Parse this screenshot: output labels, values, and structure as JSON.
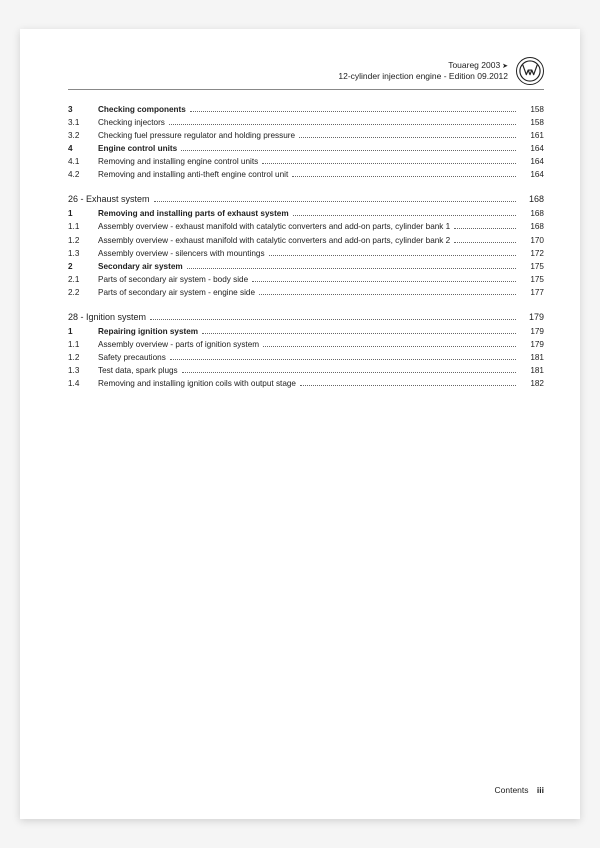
{
  "header": {
    "line1": "Touareg 2003",
    "line2": "12-cylinder injection engine - Edition 09.2012"
  },
  "sections": [
    {
      "title": null,
      "page": null,
      "rows": [
        {
          "num": "3",
          "title": "Checking components",
          "page": "158",
          "bold": true
        },
        {
          "num": "3.1",
          "title": "Checking injectors",
          "page": "158",
          "bold": false
        },
        {
          "num": "3.2",
          "title": "Checking fuel pressure regulator and holding pressure",
          "page": "161",
          "bold": false
        },
        {
          "num": "4",
          "title": "Engine control units",
          "page": "164",
          "bold": true
        },
        {
          "num": "4.1",
          "title": "Removing and installing engine control units",
          "page": "164",
          "bold": false
        },
        {
          "num": "4.2",
          "title": "Removing and installing anti-theft engine control unit",
          "page": "164",
          "bold": false
        }
      ]
    },
    {
      "title": "26 - Exhaust system",
      "page": "168",
      "rows": [
        {
          "num": "1",
          "title": "Removing and installing parts of exhaust system",
          "page": "168",
          "bold": true
        },
        {
          "num": "1.1",
          "title": "Assembly overview - exhaust manifold with catalytic converters and add-on parts, cylinder bank 1",
          "page": "168",
          "bold": false,
          "multiline": true
        },
        {
          "num": "1.2",
          "title": "Assembly overview - exhaust manifold with catalytic converters and add-on parts, cylinder bank 2",
          "page": "170",
          "bold": false,
          "multiline": true
        },
        {
          "num": "1.3",
          "title": "Assembly overview - silencers with mountings",
          "page": "172",
          "bold": false
        },
        {
          "num": "2",
          "title": "Secondary air system",
          "page": "175",
          "bold": true
        },
        {
          "num": "2.1",
          "title": "Parts of secondary air system - body side",
          "page": "175",
          "bold": false
        },
        {
          "num": "2.2",
          "title": "Parts of secondary air system - engine side",
          "page": "177",
          "bold": false
        }
      ]
    },
    {
      "title": "28 - Ignition system",
      "page": "179",
      "rows": [
        {
          "num": "1",
          "title": "Repairing ignition system",
          "page": "179",
          "bold": true
        },
        {
          "num": "1.1",
          "title": "Assembly overview - parts of ignition system",
          "page": "179",
          "bold": false
        },
        {
          "num": "1.2",
          "title": "Safety precautions",
          "page": "181",
          "bold": false
        },
        {
          "num": "1.3",
          "title": "Test data, spark plugs",
          "page": "181",
          "bold": false
        },
        {
          "num": "1.4",
          "title": "Removing and installing ignition coils with output stage",
          "page": "182",
          "bold": false
        }
      ]
    }
  ],
  "footer": {
    "label": "Contents",
    "pagenum": "iii"
  }
}
